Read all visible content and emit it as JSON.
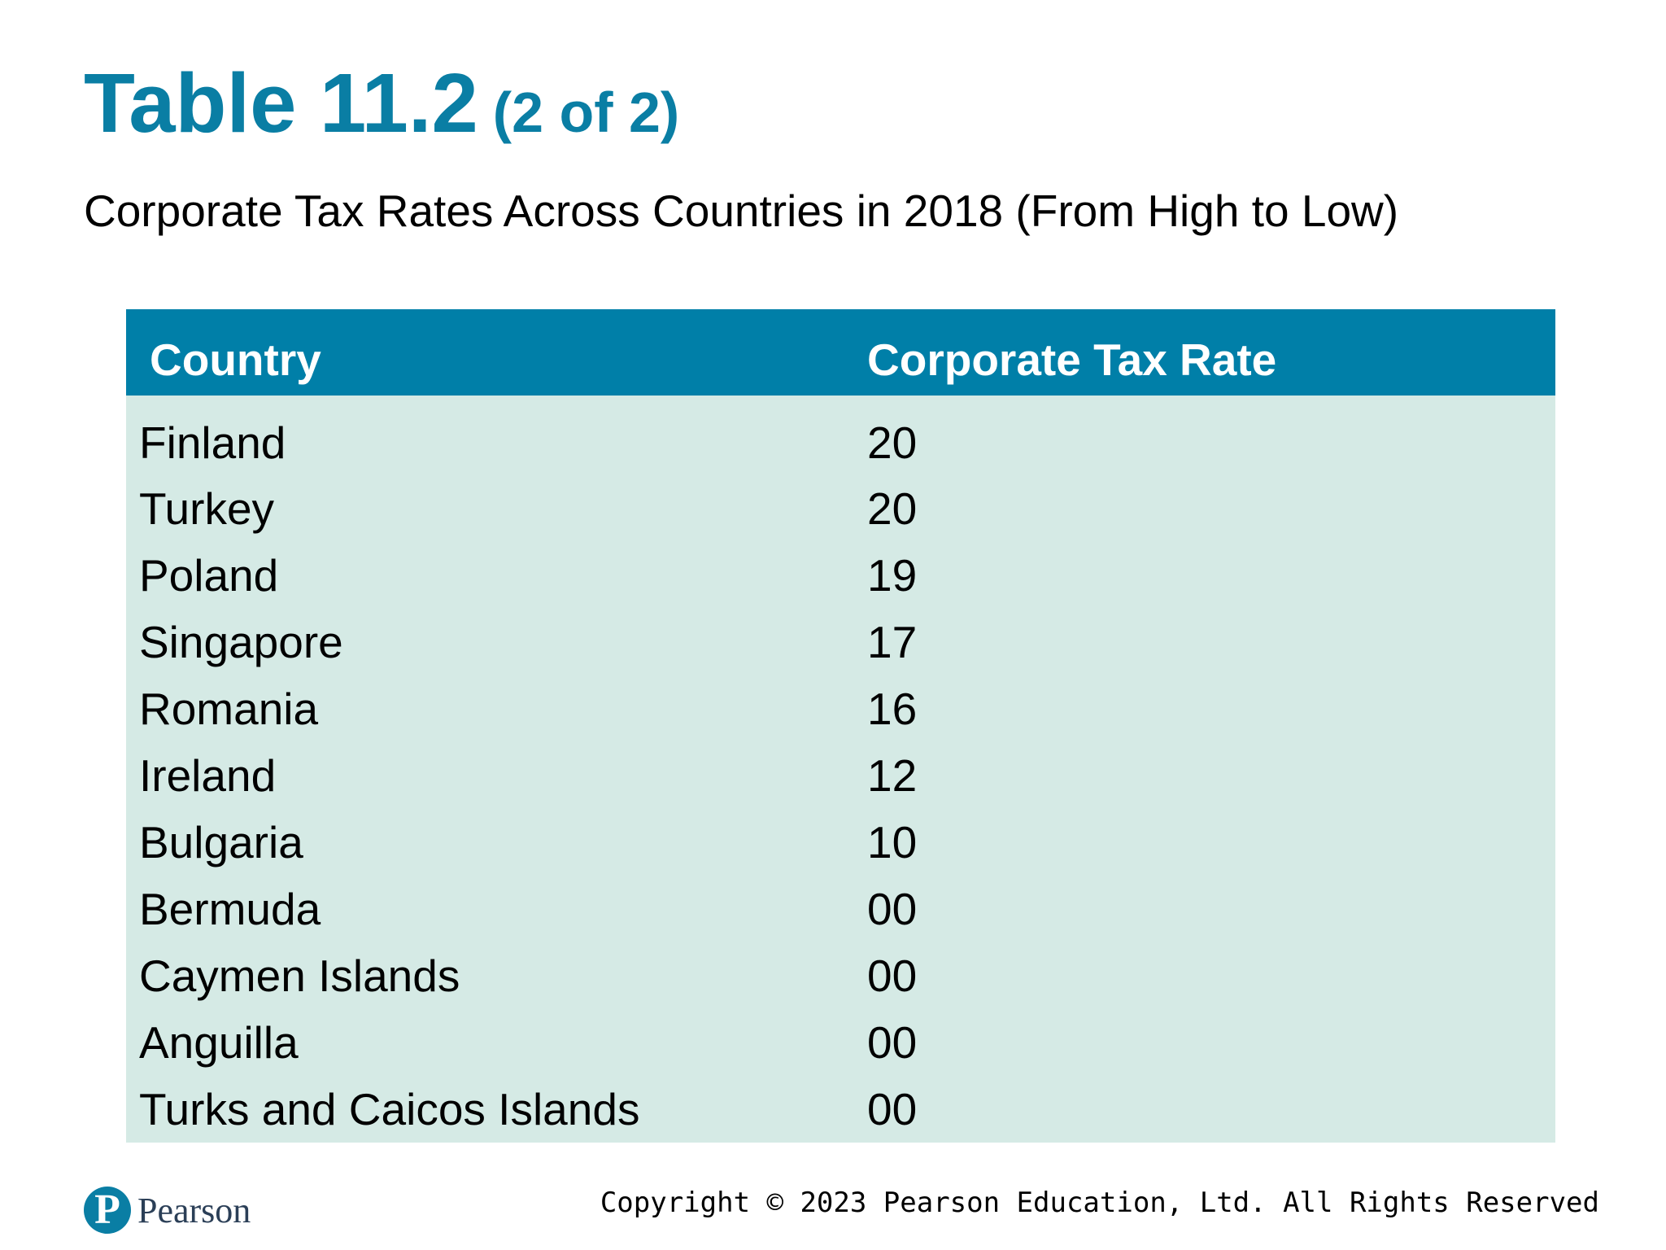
{
  "title": {
    "main": "Table 11.2",
    "part": "(2 of 2)"
  },
  "subtitle": "Corporate Tax Rates Across Countries in 2018 (From High to Low)",
  "table": {
    "headers": [
      "Country",
      "Corporate Tax Rate"
    ],
    "rows": [
      {
        "country": "Finland",
        "rate": "20"
      },
      {
        "country": "Turkey",
        "rate": "20"
      },
      {
        "country": "Poland",
        "rate": "19"
      },
      {
        "country": "Singapore",
        "rate": "17"
      },
      {
        "country": "Romania",
        "rate": "16"
      },
      {
        "country": "Ireland",
        "rate": "12"
      },
      {
        "country": "Bulgaria",
        "rate": "10"
      },
      {
        "country": "Bermuda",
        "rate": "00"
      },
      {
        "country": "Caymen Islands",
        "rate": "00"
      },
      {
        "country": "Anguilla",
        "rate": "00"
      },
      {
        "country": "Turks and Caicos Islands",
        "rate": "00"
      }
    ]
  },
  "footer": {
    "logo_mark": "P",
    "logo_word": "Pearson",
    "copyright": "Copyright © 2023 Pearson Education, Ltd. All Rights Reserved"
  },
  "colors": {
    "title": "#0a7ea4",
    "header_bg": "#007fa8",
    "body_bg": "#d5eae5"
  }
}
